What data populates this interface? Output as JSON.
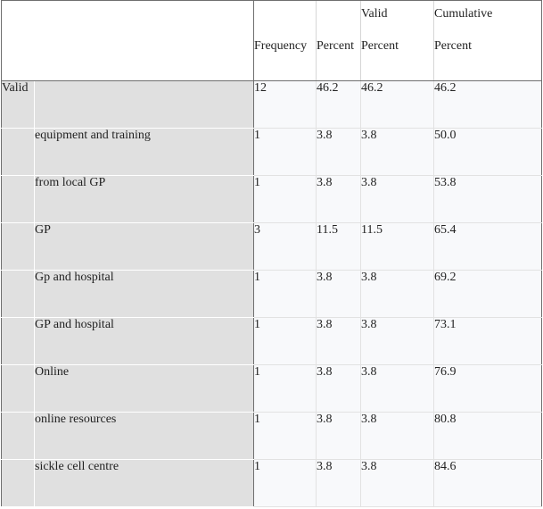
{
  "table": {
    "headers": {
      "frequency": [
        "",
        "Frequency"
      ],
      "percent": [
        "",
        "Percent"
      ],
      "valid_percent": [
        "Valid",
        "Percent"
      ],
      "cumulative_percent": [
        "Cumulative",
        "Percent"
      ]
    },
    "group_label": "Valid",
    "rows": [
      {
        "category": "",
        "frequency": "12",
        "percent": "46.2",
        "valid_percent": "46.2",
        "cumulative_percent": "46.2"
      },
      {
        "category": "equipment and training",
        "frequency": "1",
        "percent": "3.8",
        "valid_percent": "3.8",
        "cumulative_percent": "50.0"
      },
      {
        "category": "from local GP",
        "frequency": "1",
        "percent": "3.8",
        "valid_percent": "3.8",
        "cumulative_percent": "53.8"
      },
      {
        "category": "GP",
        "frequency": "3",
        "percent": "11.5",
        "valid_percent": "11.5",
        "cumulative_percent": "65.4"
      },
      {
        "category": "Gp and hospital",
        "frequency": "1",
        "percent": "3.8",
        "valid_percent": "3.8",
        "cumulative_percent": "69.2"
      },
      {
        "category": "GP and hospital",
        "frequency": "1",
        "percent": "3.8",
        "valid_percent": "3.8",
        "cumulative_percent": "73.1"
      },
      {
        "category": "Online",
        "frequency": "1",
        "percent": "3.8",
        "valid_percent": "3.8",
        "cumulative_percent": "76.9"
      },
      {
        "category": "online resources",
        "frequency": "1",
        "percent": "3.8",
        "valid_percent": "3.8",
        "cumulative_percent": "80.8"
      },
      {
        "category": "sickle cell centre",
        "frequency": "1",
        "percent": "3.8",
        "valid_percent": "3.8",
        "cumulative_percent": "84.6"
      }
    ]
  }
}
